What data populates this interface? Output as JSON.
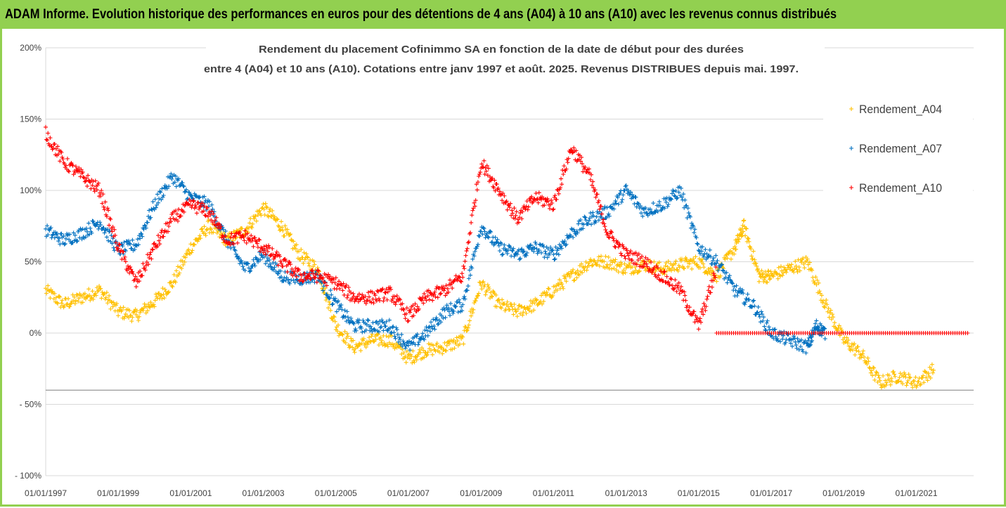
{
  "banner": "ADAM Informe. Evolution historique des performances en euros pour des détentions de 4 ans (A04) à 10 ans (A10) avec les revenus connus distribués",
  "chart_data": {
    "type": "scatter",
    "title_lines": [
      "Rendement du placement Cofinimmo SA en fonction de la date de début pour des durées",
      "entre 4 (A04) et 10 ans (A10). Cotations entre janv 1997 et août. 2025. Revenus DISTRIBUES depuis mai. 1997."
    ],
    "xlabel": "",
    "ylabel": "",
    "ylim": [
      -100,
      200
    ],
    "yticks": [
      {
        "value": 200,
        "label": "200%"
      },
      {
        "value": 150,
        "label": "150%"
      },
      {
        "value": 100,
        "label": "100%"
      },
      {
        "value": 50,
        "label": "50%"
      },
      {
        "value": 0,
        "label": "0%"
      },
      {
        "value": -50,
        "label": "- 50%"
      },
      {
        "value": -100,
        "label": "- 100%"
      }
    ],
    "xlim": [
      "1997-01-01",
      "2022-08-01"
    ],
    "xticks": [
      "01/01/1997",
      "01/01/1999",
      "01/01/2001",
      "01/01/2003",
      "01/01/2005",
      "01/01/2007",
      "01/01/2009",
      "01/01/2011",
      "01/01/2013",
      "01/01/2015",
      "01/01/2017",
      "01/01/2019",
      "01/01/2021"
    ],
    "reference_line_y": -40,
    "grid": true,
    "marker": "+",
    "legend_position": "right",
    "series": [
      {
        "name": "Rendement_A04",
        "color": "#ffc000",
        "points": [
          [
            "1997-01-01",
            30
          ],
          [
            "1997-07-01",
            20
          ],
          [
            "1998-01-01",
            25
          ],
          [
            "1998-07-01",
            30
          ],
          [
            "1999-01-01",
            15
          ],
          [
            "1999-07-01",
            12
          ],
          [
            "2000-01-01",
            22
          ],
          [
            "2000-07-01",
            35
          ],
          [
            "2001-01-01",
            60
          ],
          [
            "2001-07-01",
            75
          ],
          [
            "2002-01-01",
            65
          ],
          [
            "2002-07-01",
            72
          ],
          [
            "2003-01-01",
            88
          ],
          [
            "2003-07-01",
            75
          ],
          [
            "2004-01-01",
            55
          ],
          [
            "2004-07-01",
            45
          ],
          [
            "2005-01-01",
            5
          ],
          [
            "2005-07-01",
            -10
          ],
          [
            "2006-01-01",
            -5
          ],
          [
            "2006-07-01",
            -5
          ],
          [
            "2007-01-01",
            -18
          ],
          [
            "2007-07-01",
            -12
          ],
          [
            "2008-01-01",
            -10
          ],
          [
            "2008-07-01",
            -5
          ],
          [
            "2009-01-01",
            35
          ],
          [
            "2009-07-01",
            20
          ],
          [
            "2010-01-01",
            15
          ],
          [
            "2010-07-01",
            20
          ],
          [
            "2011-01-01",
            30
          ],
          [
            "2011-07-01",
            40
          ],
          [
            "2012-01-01",
            50
          ],
          [
            "2012-07-01",
            50
          ],
          [
            "2013-01-01",
            45
          ],
          [
            "2013-07-01",
            48
          ],
          [
            "2014-01-01",
            45
          ],
          [
            "2014-07-01",
            48
          ],
          [
            "2015-01-01",
            50
          ],
          [
            "2015-07-01",
            40
          ],
          [
            "2016-01-01",
            60
          ],
          [
            "2016-04-01",
            75
          ],
          [
            "2016-09-01",
            40
          ],
          [
            "2017-01-01",
            40
          ],
          [
            "2017-07-01",
            45
          ],
          [
            "2018-01-01",
            50
          ],
          [
            "2018-07-01",
            20
          ],
          [
            "2019-01-01",
            -5
          ],
          [
            "2019-07-01",
            -15
          ],
          [
            "2020-01-01",
            -35
          ],
          [
            "2020-07-01",
            -30
          ],
          [
            "2021-01-01",
            -35
          ],
          [
            "2021-07-01",
            -25
          ]
        ]
      },
      {
        "name": "Rendement_A07",
        "color": "#0070c0",
        "points": [
          [
            "1997-01-01",
            72
          ],
          [
            "1997-07-01",
            65
          ],
          [
            "1998-01-01",
            70
          ],
          [
            "1998-07-01",
            78
          ],
          [
            "1999-01-01",
            58
          ],
          [
            "1999-07-01",
            62
          ],
          [
            "2000-01-01",
            90
          ],
          [
            "2000-07-01",
            110
          ],
          [
            "2001-01-01",
            95
          ],
          [
            "2001-07-01",
            90
          ],
          [
            "2002-01-01",
            65
          ],
          [
            "2002-07-01",
            45
          ],
          [
            "2003-01-01",
            55
          ],
          [
            "2003-07-01",
            40
          ],
          [
            "2004-01-01",
            38
          ],
          [
            "2004-07-01",
            40
          ],
          [
            "2005-01-01",
            20
          ],
          [
            "2005-07-01",
            5
          ],
          [
            "2006-01-01",
            5
          ],
          [
            "2006-07-01",
            5
          ],
          [
            "2007-01-01",
            -10
          ],
          [
            "2007-07-01",
            0
          ],
          [
            "2008-01-01",
            15
          ],
          [
            "2008-07-01",
            20
          ],
          [
            "2009-01-01",
            75
          ],
          [
            "2009-07-01",
            60
          ],
          [
            "2010-01-01",
            55
          ],
          [
            "2010-07-01",
            60
          ],
          [
            "2011-01-01",
            55
          ],
          [
            "2011-07-01",
            70
          ],
          [
            "2012-01-01",
            80
          ],
          [
            "2012-07-01",
            85
          ],
          [
            "2013-01-01",
            100
          ],
          [
            "2013-07-01",
            85
          ],
          [
            "2014-01-01",
            90
          ],
          [
            "2014-07-01",
            100
          ],
          [
            "2015-01-01",
            60
          ],
          [
            "2015-07-01",
            50
          ],
          [
            "2016-01-01",
            30
          ],
          [
            "2016-07-01",
            20
          ],
          [
            "2017-01-01",
            0
          ],
          [
            "2017-07-01",
            -5
          ],
          [
            "2018-01-01",
            -10
          ],
          [
            "2018-04-01",
            5
          ],
          [
            "2018-07-01",
            0
          ]
        ]
      },
      {
        "name": "Rendement_A10",
        "color": "#ff0000",
        "points": [
          [
            "1997-01-01",
            140
          ],
          [
            "1997-07-01",
            120
          ],
          [
            "1998-01-01",
            110
          ],
          [
            "1998-07-01",
            100
          ],
          [
            "1999-01-01",
            60
          ],
          [
            "1999-07-01",
            35
          ],
          [
            "2000-01-01",
            60
          ],
          [
            "2000-07-01",
            80
          ],
          [
            "2001-01-01",
            90
          ],
          [
            "2001-07-01",
            85
          ],
          [
            "2002-01-01",
            65
          ],
          [
            "2002-07-01",
            68
          ],
          [
            "2003-01-01",
            60
          ],
          [
            "2003-07-01",
            50
          ],
          [
            "2004-01-01",
            40
          ],
          [
            "2004-07-01",
            40
          ],
          [
            "2005-01-01",
            35
          ],
          [
            "2005-07-01",
            25
          ],
          [
            "2006-01-01",
            25
          ],
          [
            "2006-07-01",
            28
          ],
          [
            "2007-01-01",
            12
          ],
          [
            "2007-07-01",
            25
          ],
          [
            "2008-01-01",
            30
          ],
          [
            "2008-07-01",
            40
          ],
          [
            "2009-01-01",
            120
          ],
          [
            "2009-07-01",
            100
          ],
          [
            "2010-01-01",
            80
          ],
          [
            "2010-07-01",
            95
          ],
          [
            "2011-01-01",
            90
          ],
          [
            "2011-07-01",
            130
          ],
          [
            "2012-01-01",
            110
          ],
          [
            "2012-07-01",
            70
          ],
          [
            "2013-01-01",
            55
          ],
          [
            "2013-07-01",
            50
          ],
          [
            "2014-01-01",
            40
          ],
          [
            "2014-07-01",
            30
          ],
          [
            "2015-01-01",
            5
          ],
          [
            "2015-07-01",
            45
          ]
        ],
        "flat_segment": {
          "start": "2015-07-01",
          "end": "2022-06-01",
          "value": 0
        }
      }
    ]
  }
}
